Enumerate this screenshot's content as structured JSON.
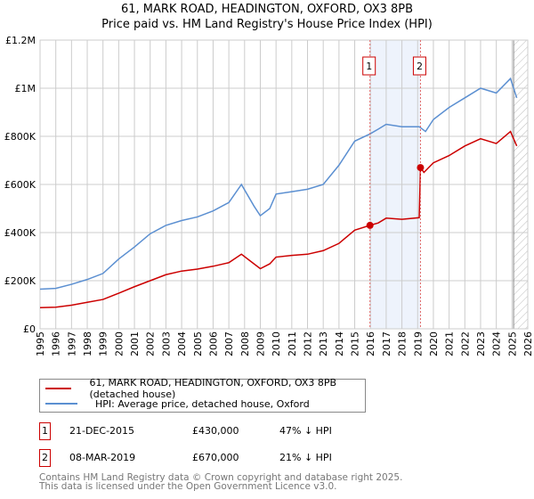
{
  "chart_data": {
    "type": "line",
    "title": "61, MARK ROAD, HEADINGTON, OXFORD, OX3 8PB",
    "subtitle": "Price paid vs. HM Land Registry's House Price Index (HPI)",
    "xlim": [
      1995,
      2026
    ],
    "ylim": [
      0,
      1200000
    ],
    "x_ticks": [
      "1995",
      "1996",
      "1997",
      "1998",
      "1999",
      "2000",
      "2001",
      "2002",
      "2003",
      "2004",
      "2005",
      "2006",
      "2007",
      "2008",
      "2009",
      "2010",
      "2011",
      "2012",
      "2013",
      "2014",
      "2015",
      "2016",
      "2017",
      "2018",
      "2019",
      "2020",
      "2021",
      "2022",
      "2023",
      "2024",
      "2025",
      "2026"
    ],
    "y_ticks": [
      {
        "v": 0,
        "label": "£0"
      },
      {
        "v": 200000,
        "label": "£200K"
      },
      {
        "v": 400000,
        "label": "£400K"
      },
      {
        "v": 600000,
        "label": "£600K"
      },
      {
        "v": 800000,
        "label": "£800K"
      },
      {
        "v": 1000000,
        "label": "£1M"
      },
      {
        "v": 1200000,
        "label": "£1.2M"
      }
    ],
    "grid": true,
    "series": [
      {
        "name": "61, MARK ROAD, HEADINGTON, OXFORD, OX3 8PB (detached house)",
        "color": "#cc0000",
        "x": [
          1995,
          1996,
          1997,
          1998,
          1999,
          2000,
          2001,
          2002,
          2003,
          2004,
          2005,
          2006,
          2007,
          2007.8,
          2008.6,
          2009,
          2009.6,
          2010,
          2011,
          2012,
          2013,
          2014,
          2015,
          2015.97,
          2016.5,
          2017,
          2018,
          2019.1,
          2019.18,
          2019.4,
          2020,
          2021,
          2022,
          2023,
          2024,
          2024.9,
          2025.3
        ],
        "y": [
          88000,
          90000,
          98000,
          110000,
          122000,
          148000,
          175000,
          200000,
          225000,
          240000,
          248000,
          260000,
          275000,
          310000,
          270000,
          250000,
          270000,
          298000,
          305000,
          310000,
          325000,
          355000,
          410000,
          430000,
          440000,
          460000,
          455000,
          462000,
          670000,
          650000,
          690000,
          720000,
          760000,
          790000,
          770000,
          820000,
          760000
        ]
      },
      {
        "name": "HPI: Average price, detached house, Oxford",
        "color": "#5b8fd1",
        "x": [
          1995,
          1996,
          1997,
          1998,
          1999,
          2000,
          2001,
          2002,
          2003,
          2004,
          2005,
          2006,
          2007,
          2007.8,
          2008.6,
          2009,
          2009.6,
          2010,
          2011,
          2012,
          2013,
          2014,
          2015,
          2015.97,
          2016.5,
          2017,
          2018,
          2019.1,
          2019.5,
          2020,
          2021,
          2022,
          2023,
          2024,
          2024.9,
          2025.3
        ],
        "y": [
          165000,
          168000,
          185000,
          205000,
          230000,
          290000,
          340000,
          395000,
          430000,
          450000,
          465000,
          490000,
          525000,
          600000,
          510000,
          470000,
          500000,
          560000,
          570000,
          580000,
          600000,
          680000,
          780000,
          810000,
          830000,
          850000,
          840000,
          840000,
          820000,
          870000,
          920000,
          960000,
          1000000,
          980000,
          1040000,
          960000
        ]
      }
    ],
    "sales": [
      {
        "num": "1",
        "x": 2015.97,
        "y": 430000
      },
      {
        "num": "2",
        "x": 2019.18,
        "y": 670000
      }
    ],
    "shaded_range": [
      2015.97,
      2019.18
    ],
    "future_hatch_from": 2025.1
  },
  "legend": {
    "red": "61, MARK ROAD, HEADINGTON, OXFORD, OX3 8PB (detached house)",
    "blue": "HPI: Average price, detached house, Oxford"
  },
  "transactions": [
    {
      "num": "1",
      "date": "21-DEC-2015",
      "price": "£430,000",
      "delta": "47% ↓ HPI"
    },
    {
      "num": "2",
      "date": "08-MAR-2019",
      "price": "£670,000",
      "delta": "21% ↓ HPI"
    }
  ],
  "footer": {
    "line1": "Contains HM Land Registry data © Crown copyright and database right 2025.",
    "line2": "This data is licensed under the Open Government Licence v3.0."
  }
}
